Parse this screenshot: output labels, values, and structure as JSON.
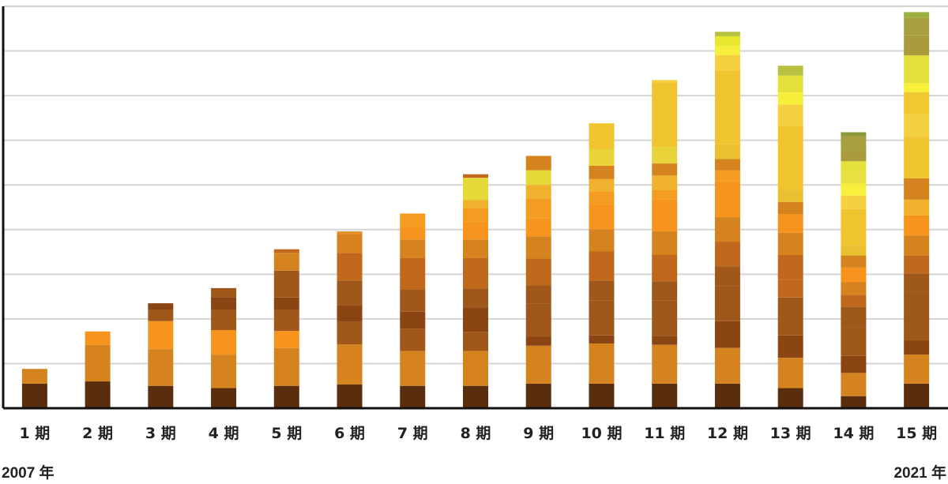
{
  "chart_data": {
    "type": "bar",
    "stacked": true,
    "categories": [
      "1 期",
      "2 期",
      "3 期",
      "4 期",
      "5 期",
      "6 期",
      "7 期",
      "8 期",
      "9 期",
      "10 期",
      "11 期",
      "12 期",
      "13 期",
      "14 期",
      "15 期"
    ],
    "ylim": [
      0,
      9
    ],
    "grid": true,
    "start_label": "2007 年",
    "end_label": "2021 年",
    "segments": [
      [
        [
          0.55,
          "#5a2d0c"
        ],
        [
          0.33,
          "#d4831f"
        ]
      ],
      [
        [
          0.6,
          "#5a2d0c"
        ],
        [
          0.82,
          "#d4831f"
        ],
        [
          0.3,
          "#f7941d"
        ]
      ],
      [
        [
          0.5,
          "#5a2d0c"
        ],
        [
          0.82,
          "#d4831f"
        ],
        [
          0.63,
          "#f7941d"
        ],
        [
          0.26,
          "#a0581a"
        ],
        [
          0.14,
          "#8b4513"
        ]
      ],
      [
        [
          0.45,
          "#5a2d0c"
        ],
        [
          0.75,
          "#d4831f"
        ],
        [
          0.55,
          "#f7941d"
        ],
        [
          0.45,
          "#a0581a"
        ],
        [
          0.29,
          "#8b4513"
        ],
        [
          0.2,
          "#a0581a"
        ]
      ],
      [
        [
          0.5,
          "#5a2d0c"
        ],
        [
          0.85,
          "#d4831f"
        ],
        [
          0.38,
          "#f7941d"
        ],
        [
          0.47,
          "#a0581a"
        ],
        [
          0.28,
          "#8b4513"
        ],
        [
          0.6,
          "#a0581a"
        ],
        [
          0.4,
          "#d4831f"
        ],
        [
          0.08,
          "#c0691c"
        ]
      ],
      [
        [
          0.53,
          "#5a2d0c"
        ],
        [
          0.9,
          "#d4831f"
        ],
        [
          0.5,
          "#a0581a"
        ],
        [
          0.38,
          "#8b4513"
        ],
        [
          0.55,
          "#a0581a"
        ],
        [
          0.62,
          "#c0691c"
        ],
        [
          0.42,
          "#d4831f"
        ],
        [
          0.06,
          "#e3902a"
        ]
      ],
      [
        [
          0.5,
          "#5a2d0c"
        ],
        [
          0.78,
          "#d4831f"
        ],
        [
          0.5,
          "#a0581a"
        ],
        [
          0.38,
          "#8b4513"
        ],
        [
          0.5,
          "#a0581a"
        ],
        [
          0.7,
          "#c0691c"
        ],
        [
          0.42,
          "#d4831f"
        ],
        [
          0.26,
          "#f7941d"
        ],
        [
          0.32,
          "#f39c1f"
        ]
      ],
      [
        [
          0.5,
          "#5a2d0c"
        ],
        [
          0.78,
          "#d4831f"
        ],
        [
          0.43,
          "#a0581a"
        ],
        [
          0.55,
          "#8b4513"
        ],
        [
          0.42,
          "#a0581a"
        ],
        [
          0.68,
          "#c0691c"
        ],
        [
          0.42,
          "#d4831f"
        ],
        [
          0.4,
          "#f7941d"
        ],
        [
          0.3,
          "#f39c1f"
        ],
        [
          0.18,
          "#f0b12c"
        ],
        [
          0.5,
          "#e8d93a"
        ],
        [
          0.08,
          "#c0691c"
        ]
      ],
      [
        [
          0.55,
          "#5a2d0c"
        ],
        [
          0.85,
          "#d4831f"
        ],
        [
          0.2,
          "#8b4513"
        ],
        [
          0.75,
          "#a0581a"
        ],
        [
          0.4,
          "#a0581a"
        ],
        [
          0.6,
          "#c0691c"
        ],
        [
          0.5,
          "#d4831f"
        ],
        [
          0.4,
          "#f7941d"
        ],
        [
          0.45,
          "#f39c1f"
        ],
        [
          0.3,
          "#f0b12c"
        ],
        [
          0.33,
          "#e8d93a"
        ],
        [
          0.32,
          "#d4831f"
        ]
      ],
      [
        [
          0.55,
          "#5a2d0c"
        ],
        [
          0.9,
          "#d4831f"
        ],
        [
          0.18,
          "#8b4513"
        ],
        [
          0.78,
          "#a0581a"
        ],
        [
          0.45,
          "#a0581a"
        ],
        [
          0.65,
          "#c0691c"
        ],
        [
          0.5,
          "#d4831f"
        ],
        [
          0.55,
          "#f7941d"
        ],
        [
          0.3,
          "#f39c1f"
        ],
        [
          0.27,
          "#f0b12c"
        ],
        [
          0.3,
          "#d4831f"
        ],
        [
          0.37,
          "#e8d33a"
        ],
        [
          0.58,
          "#f0c42e"
        ]
      ],
      [
        [
          0.55,
          "#5a2d0c"
        ],
        [
          0.87,
          "#d4831f"
        ],
        [
          0.2,
          "#8b4513"
        ],
        [
          0.8,
          "#a0581a"
        ],
        [
          0.42,
          "#a0581a"
        ],
        [
          0.6,
          "#c0691c"
        ],
        [
          0.52,
          "#d4831f"
        ],
        [
          0.72,
          "#f7941d"
        ],
        [
          0.2,
          "#f39c1f"
        ],
        [
          0.33,
          "#f0b12c"
        ],
        [
          0.27,
          "#d4831f"
        ],
        [
          0.37,
          "#e8d33a"
        ],
        [
          1.45,
          "#f0c42e"
        ],
        [
          0.05,
          "#f5d040"
        ]
      ],
      [
        [
          0.55,
          "#5a2d0c"
        ],
        [
          0.8,
          "#d4831f"
        ],
        [
          0.6,
          "#8b4513"
        ],
        [
          0.78,
          "#a0581a"
        ],
        [
          0.45,
          "#a0581a"
        ],
        [
          0.55,
          "#c0691c"
        ],
        [
          0.55,
          "#d4831f"
        ],
        [
          0.8,
          "#f7941d"
        ],
        [
          0.25,
          "#f39c1f"
        ],
        [
          0.25,
          "#d4831f"
        ],
        [
          0.33,
          "#e8c030"
        ],
        [
          1.65,
          "#f0c42e"
        ],
        [
          0.35,
          "#f5d040"
        ],
        [
          0.2,
          "#f7ef3a"
        ],
        [
          0.22,
          "#e8e830"
        ],
        [
          0.1,
          "#b8c040"
        ]
      ],
      [
        [
          0.45,
          "#5a2d0c"
        ],
        [
          0.68,
          "#d4831f"
        ],
        [
          0.5,
          "#8b4513"
        ],
        [
          0.85,
          "#a0581a"
        ],
        [
          0.4,
          "#c0691c"
        ],
        [
          0.55,
          "#c0691c"
        ],
        [
          0.5,
          "#d4831f"
        ],
        [
          0.42,
          "#f7941d"
        ],
        [
          0.27,
          "#d4831f"
        ],
        [
          0.27,
          "#e8c030"
        ],
        [
          1.43,
          "#f0c42e"
        ],
        [
          0.48,
          "#f5d040"
        ],
        [
          0.27,
          "#f7ef3a"
        ],
        [
          0.38,
          "#e3e03a"
        ],
        [
          0.22,
          "#b8c040"
        ]
      ],
      [
        [
          0.27,
          "#5a2d0c"
        ],
        [
          0.52,
          "#d4831f"
        ],
        [
          0.38,
          "#8b4513"
        ],
        [
          0.65,
          "#a0581a"
        ],
        [
          0.45,
          "#a0581a"
        ],
        [
          0.27,
          "#c0691c"
        ],
        [
          0.28,
          "#d4831f"
        ],
        [
          0.33,
          "#f7941d"
        ],
        [
          0.27,
          "#d4831f"
        ],
        [
          0.22,
          "#e8c030"
        ],
        [
          0.82,
          "#f0c42e"
        ],
        [
          0.3,
          "#f5d040"
        ],
        [
          0.27,
          "#f7ef3a"
        ],
        [
          0.25,
          "#e8e040"
        ],
        [
          0.25,
          "#e3e03a"
        ],
        [
          0.25,
          "#a89c3c"
        ],
        [
          0.32,
          "#a8a040"
        ],
        [
          0.08,
          "#8a9a3a"
        ]
      ],
      [
        [
          0.55,
          "#5a2d0c"
        ],
        [
          0.65,
          "#d4831f"
        ],
        [
          0.32,
          "#8b4513"
        ],
        [
          1.08,
          "#a0581a"
        ],
        [
          0.42,
          "#a0581a"
        ],
        [
          0.4,
          "#c0691c"
        ],
        [
          0.45,
          "#d4831f"
        ],
        [
          0.45,
          "#f7941d"
        ],
        [
          0.35,
          "#f0b12c"
        ],
        [
          0.48,
          "#d4831f"
        ],
        [
          0.93,
          "#f0c42e"
        ],
        [
          0.5,
          "#f5d040"
        ],
        [
          0.5,
          "#f0c830"
        ],
        [
          0.2,
          "#f7ef3a"
        ],
        [
          0.62,
          "#e3e03a"
        ],
        [
          0.45,
          "#a89c3c"
        ],
        [
          0.4,
          "#a8a040"
        ],
        [
          0.12,
          "#9cb040"
        ]
      ]
    ]
  }
}
